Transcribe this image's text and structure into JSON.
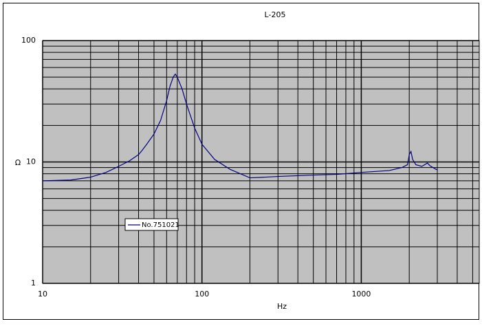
{
  "chart_data": {
    "type": "line",
    "title": "L-205",
    "x_label": "Hz",
    "y_label": "Ω",
    "x_log": true,
    "y_log": true,
    "grid": true,
    "legend_position": "lower-left",
    "xlim": [
      10,
      5500
    ],
    "xticks": [
      10,
      100,
      1000
    ],
    "ylim": [
      1,
      100
    ],
    "yticks": [
      1,
      10,
      100
    ],
    "x": [
      10,
      15,
      20,
      25,
      30,
      35,
      40,
      42,
      45,
      50,
      55,
      60,
      63,
      66,
      68,
      70,
      75,
      80,
      90,
      100,
      120,
      150,
      200,
      250,
      300,
      500,
      700,
      1000,
      1500,
      1800,
      1950,
      2000,
      2050,
      2100,
      2200,
      2400,
      2600,
      2700,
      2900,
      3000
    ],
    "series": [
      {
        "name": "No.751021",
        "color": "#000080",
        "values": [
          7.0,
          7.1,
          7.5,
          8.2,
          9.2,
          10.2,
          11.5,
          12.4,
          14,
          17,
          22,
          32,
          42,
          50,
          53,
          50,
          40,
          30,
          19,
          14,
          10.5,
          8.7,
          7.4,
          7.5,
          7.6,
          7.8,
          7.9,
          8.2,
          8.5,
          9.0,
          9.5,
          11.5,
          12.2,
          10.5,
          9.5,
          9.2,
          9.8,
          9.3,
          8.8,
          8.6
        ]
      }
    ]
  }
}
